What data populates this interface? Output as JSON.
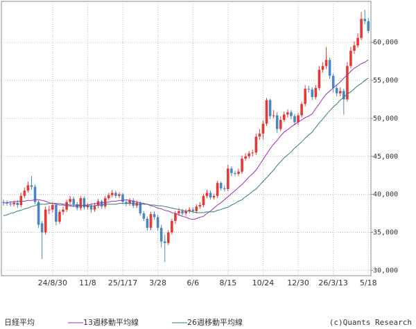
{
  "chart_data": {
    "type": "candlestick",
    "categories": [
      null,
      null,
      null,
      null,
      null,
      null,
      null,
      null,
      null,
      null,
      null,
      null,
      null,
      null,
      "24/8/30",
      null,
      null,
      null,
      null,
      null,
      null,
      null,
      null,
      null,
      "11/8",
      null,
      null,
      null,
      null,
      null,
      null,
      null,
      null,
      null,
      "25/1/17",
      null,
      null,
      null,
      null,
      null,
      null,
      null,
      null,
      null,
      "3/28",
      null,
      null,
      null,
      null,
      null,
      null,
      null,
      null,
      null,
      "6/6",
      null,
      null,
      null,
      null,
      null,
      null,
      null,
      null,
      null,
      "8/15",
      null,
      null,
      null,
      null,
      null,
      null,
      null,
      null,
      null,
      "10/24",
      null,
      null,
      null,
      null,
      null,
      null,
      null,
      null,
      null,
      "12/30",
      null,
      null,
      null,
      null,
      null,
      null,
      null,
      null,
      null,
      "26/3/13",
      null,
      null,
      null,
      null,
      null,
      null,
      null,
      null,
      null,
      "5/18"
    ],
    "series": [
      {
        "name": "日経平均",
        "type": "candlestick",
        "up_color": "#e53935",
        "down_color": "#4a86c5",
        "open": [
          39000,
          38900,
          38800,
          38700,
          38900,
          38600,
          39800,
          40500,
          41200,
          41000,
          39000,
          36200,
          35000,
          38000,
          38000,
          38600,
          36400,
          37700,
          38000,
          39000,
          39400,
          38700,
          38200,
          39500,
          38300,
          38500,
          38000,
          38500,
          39100,
          38400,
          39500,
          39900,
          40200,
          39800,
          40000,
          39000,
          38800,
          39200,
          38500,
          38900,
          37500,
          36800,
          35600,
          37400,
          37000,
          35600,
          33800,
          33600,
          35000,
          36500,
          37500,
          37800,
          37500,
          37800,
          38000,
          37800,
          38400,
          38600,
          39800,
          40200,
          39600,
          39800,
          41500,
          40800,
          40700,
          43400,
          42800,
          42700,
          43000,
          44700,
          45000,
          45400,
          45500,
          47600,
          48000,
          49300,
          52400,
          50300,
          50400,
          48600,
          49800,
          50500,
          50800,
          50300,
          49500,
          50400,
          51900,
          53900,
          53800,
          52800,
          54000,
          56400,
          56900,
          57700,
          55600,
          54000,
          53300,
          53600,
          52500,
          56900,
          58900,
          59600,
          60600,
          63100,
          62800
        ],
        "high": [
          39300,
          39200,
          39100,
          39200,
          39200,
          40200,
          40900,
          41700,
          42400,
          41300,
          39200,
          36500,
          38400,
          38500,
          39000,
          38800,
          38000,
          38400,
          39300,
          39800,
          39700,
          39000,
          39800,
          39700,
          38900,
          38800,
          38900,
          39400,
          39300,
          39800,
          40200,
          40600,
          40500,
          40300,
          40200,
          39300,
          39500,
          39500,
          39200,
          39100,
          37800,
          37100,
          37700,
          37800,
          37300,
          36000,
          34700,
          35300,
          36800,
          37800,
          38200,
          38100,
          38100,
          38300,
          38300,
          38700,
          39000,
          40100,
          40600,
          40500,
          40100,
          41800,
          41700,
          41200,
          43900,
          43700,
          43100,
          43400,
          45100,
          45400,
          45700,
          45900,
          48000,
          48600,
          49700,
          52700,
          52600,
          51100,
          50800,
          50300,
          50900,
          51200,
          51100,
          50600,
          50700,
          52200,
          54400,
          54300,
          54100,
          54400,
          56900,
          57400,
          59400,
          58000,
          55900,
          54400,
          54100,
          53900,
          57400,
          59400,
          60100,
          61200,
          64000,
          64300,
          63200
        ],
        "low": [
          38500,
          38500,
          38400,
          38400,
          38200,
          38300,
          39500,
          40200,
          40600,
          38700,
          35600,
          31500,
          34700,
          37400,
          37600,
          35900,
          36100,
          37300,
          37700,
          38700,
          38400,
          37900,
          37900,
          38000,
          38000,
          37600,
          37700,
          38200,
          38100,
          38100,
          39200,
          39600,
          39500,
          39500,
          38700,
          38400,
          38500,
          38200,
          38200,
          37200,
          36500,
          35200,
          35300,
          36700,
          35200,
          33000,
          31100,
          33300,
          34700,
          36100,
          37200,
          37200,
          37200,
          37500,
          37500,
          37500,
          38100,
          38300,
          39500,
          39300,
          39300,
          39500,
          40500,
          40400,
          40400,
          42400,
          42400,
          42400,
          42700,
          44400,
          44700,
          45000,
          45200,
          47200,
          47200,
          49000,
          49900,
          50000,
          48100,
          48300,
          49500,
          50100,
          49900,
          49100,
          49100,
          50100,
          51600,
          53400,
          52400,
          52500,
          53700,
          56000,
          56500,
          55200,
          53400,
          52900,
          52900,
          50500,
          52200,
          56600,
          58500,
          59300,
          60300,
          62400,
          61200
        ],
        "close": [
          38900,
          38800,
          38700,
          38900,
          38600,
          39800,
          40500,
          41200,
          41000,
          39000,
          36000,
          35000,
          38000,
          38000,
          38600,
          36400,
          37700,
          38000,
          39000,
          39400,
          38700,
          38200,
          39500,
          38300,
          38500,
          38000,
          38500,
          39100,
          38400,
          39500,
          39900,
          40200,
          39800,
          40000,
          39000,
          38800,
          39200,
          38500,
          38900,
          37500,
          36800,
          35600,
          37400,
          37000,
          35600,
          33800,
          33600,
          35000,
          36500,
          37500,
          37800,
          37500,
          37800,
          38000,
          37800,
          38400,
          38600,
          39800,
          40200,
          39600,
          39800,
          41500,
          40800,
          40700,
          43400,
          42800,
          42700,
          43000,
          44700,
          45000,
          45400,
          45500,
          47600,
          48000,
          49300,
          52400,
          50300,
          50400,
          48600,
          49800,
          50500,
          50800,
          50300,
          49500,
          50400,
          51900,
          53900,
          53800,
          52800,
          54000,
          56400,
          56900,
          57700,
          55600,
          54000,
          53300,
          53600,
          52500,
          56900,
          58900,
          59600,
          60600,
          63100,
          62800,
          61500
        ]
      },
      {
        "name": "13週移動平均線",
        "type": "line",
        "color": "#9b30b0",
        "values": [
          38900,
          38900,
          39000,
          39000,
          39100,
          39100,
          39100,
          39200,
          39200,
          39300,
          39300,
          39200,
          39100,
          38900,
          38800,
          38700,
          38600,
          38600,
          38500,
          38500,
          38400,
          38500,
          38500,
          38600,
          38600,
          38700,
          38800,
          38800,
          38900,
          38900,
          39000,
          39100,
          39100,
          39200,
          39200,
          39300,
          39200,
          39100,
          39000,
          38900,
          38800,
          38700,
          38500,
          38400,
          38200,
          38100,
          37900,
          37800,
          37600,
          37500,
          37300,
          37100,
          37000,
          36800,
          36700,
          36800,
          37000,
          37100,
          37500,
          37800,
          38200,
          38600,
          38900,
          39300,
          39700,
          40100,
          40500,
          40900,
          41300,
          41800,
          42300,
          42700,
          43200,
          43900,
          44600,
          45300,
          46000,
          46600,
          47100,
          47700,
          48200,
          48500,
          48900,
          49200,
          49500,
          49800,
          50100,
          50300,
          50600,
          51300,
          51900,
          52600,
          53200,
          53600,
          54000,
          54400,
          54800,
          55300,
          55700,
          56200,
          56600,
          56900,
          57200,
          57400,
          57700
        ]
      },
      {
        "name": "26週移動平均線",
        "type": "line",
        "color": "#2e7d7a",
        "values": [
          37200,
          37300,
          37500,
          37600,
          37800,
          37900,
          38100,
          38200,
          38400,
          38500,
          38700,
          38700,
          38700,
          38800,
          38800,
          38800,
          38800,
          38700,
          38700,
          38600,
          38600,
          38600,
          38600,
          38500,
          38500,
          38500,
          38500,
          38600,
          38600,
          38700,
          38700,
          38700,
          38700,
          38800,
          38800,
          38800,
          38800,
          38800,
          38700,
          38700,
          38700,
          38700,
          38600,
          38600,
          38500,
          38500,
          38400,
          38300,
          38200,
          38100,
          38000,
          37900,
          37800,
          37800,
          37700,
          37600,
          37600,
          37600,
          37700,
          37700,
          37700,
          37900,
          38000,
          38200,
          38300,
          38600,
          38800,
          39100,
          39300,
          39700,
          40000,
          40400,
          40700,
          41200,
          41700,
          42200,
          42700,
          43200,
          43800,
          44300,
          44800,
          45200,
          45600,
          46100,
          46500,
          46900,
          47400,
          47800,
          48200,
          48800,
          49400,
          49900,
          50500,
          51000,
          51500,
          51900,
          52400,
          52800,
          53200,
          53500,
          53900,
          54300,
          54600,
          55000,
          55300
        ]
      }
    ],
    "ylim": [
      29300,
      65400
    ],
    "yticks": [
      {
        "value": 30000,
        "label": "30,000"
      },
      {
        "value": 35000,
        "label": "35,000"
      },
      {
        "value": 40000,
        "label": "40,000"
      },
      {
        "value": 45000,
        "label": "45,000"
      },
      {
        "value": 50000,
        "label": "50,000"
      },
      {
        "value": 55000,
        "label": "55,000"
      },
      {
        "value": 60000,
        "label": "60,000"
      }
    ],
    "grid": true,
    "credit": "(c)Quants Research"
  }
}
